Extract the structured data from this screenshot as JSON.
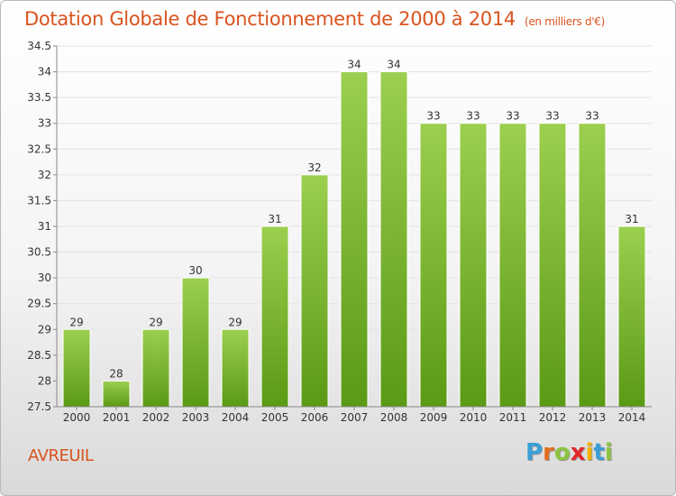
{
  "title": "Dotation Globale de Fonctionnement de 2000 à 2014",
  "subtitle": "(en milliers d'€)",
  "commune": "AVREUIL",
  "logo": {
    "letters": [
      "P",
      "r",
      "o",
      "x",
      "i",
      "t",
      "i"
    ],
    "colors": [
      "#3a9fd6",
      "#e36b1c",
      "#8cc43f",
      "#e3262a",
      "#f2b300",
      "#3a9fd6",
      "#8cc43f"
    ]
  },
  "colors": {
    "title": "#d9531e",
    "bar_top": "#9ccf4f",
    "bar_bottom": "#5a9a15",
    "axis": "#888888",
    "grid": "#e3e3e3"
  },
  "chart_data": {
    "type": "bar",
    "title": "Dotation Globale de Fonctionnement de 2000 à 2014",
    "subtitle": "(en milliers d'€)",
    "xlabel": "",
    "ylabel": "",
    "categories": [
      "2000",
      "2001",
      "2002",
      "2003",
      "2004",
      "2005",
      "2006",
      "2007",
      "2008",
      "2009",
      "2010",
      "2011",
      "2012",
      "2013",
      "2014"
    ],
    "values": [
      29,
      28,
      29,
      30,
      29,
      31,
      32,
      34,
      34,
      33,
      33,
      33,
      33,
      33,
      31
    ],
    "value_labels": [
      "29",
      "28",
      "29",
      "30",
      "29",
      "31",
      "32",
      "34",
      "34",
      "33",
      "33",
      "33",
      "33",
      "33",
      "31"
    ],
    "ylim": [
      27.5,
      34.5
    ],
    "yticks": [
      27.5,
      28,
      28.5,
      29,
      29.5,
      30,
      30.5,
      31,
      31.5,
      32,
      32.5,
      33,
      33.5,
      34,
      34.5
    ],
    "ytick_labels": [
      "27.5",
      "28",
      "28.5",
      "29",
      "29.5",
      "30",
      "30.5",
      "31",
      "31.5",
      "32",
      "32.5",
      "33",
      "33.5",
      "34",
      "34.5"
    ],
    "grid": true,
    "legend": "none"
  }
}
